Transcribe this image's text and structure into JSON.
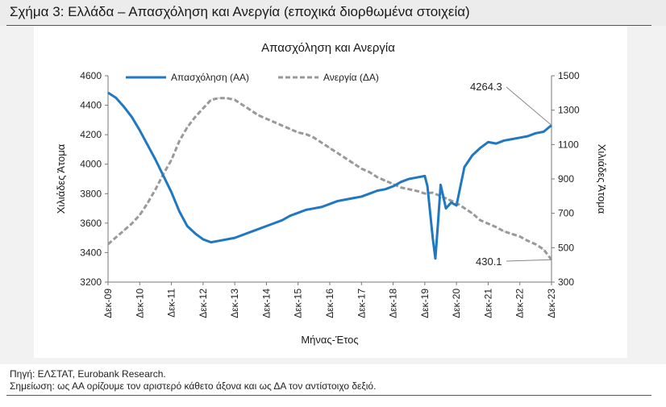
{
  "figure": {
    "title": "Σχήμα 3: Ελλάδα – Απασχόληση και Ανεργία (εποχικά διορθωμένα στοιχεία)",
    "source": "Πηγή: ΕΛΣΤΑΤ, Eurobank Research.",
    "note": "Σημείωση: ως ΑΑ ορίζουμε τον αριστερό κάθετο άξονα και ως ΔΑ τον αντίστοιχο δεξιό."
  },
  "chart_data": {
    "type": "line",
    "title": "Απασχόληση και Ανεργία",
    "xlabel": "Μήνας-Έτος",
    "ylabel_left": "Χιλιάδες Άτομα",
    "ylabel_right": "Χιλιάδες Άτομα",
    "ylim_left": [
      3200,
      4600
    ],
    "ylim_right": [
      300,
      1500
    ],
    "yticks_left": [
      "4600",
      "4400",
      "4200",
      "4000",
      "3800",
      "3600",
      "3400",
      "3200"
    ],
    "yticks_right": [
      "1500",
      "1300",
      "1100",
      "900",
      "700",
      "500",
      "300"
    ],
    "categories": [
      "Δεκ-09",
      "Δεκ-10",
      "Δεκ-11",
      "Δεκ-12",
      "Δεκ-13",
      "Δεκ-14",
      "Δεκ-15",
      "Δεκ-16",
      "Δεκ-17",
      "Δεκ-18",
      "Δεκ-19",
      "Δεκ-20",
      "Δεκ-21",
      "Δεκ-22",
      "Δεκ-23"
    ],
    "legend_position": "top",
    "grid": false,
    "colors": {
      "employment": "#1f78c1",
      "unemployment": "#999999",
      "annotation": "#888888"
    },
    "series": [
      {
        "name": "Απασχόληση (ΑΑ)",
        "axis": "left",
        "x": [
          "2009-12",
          "2010-03",
          "2010-06",
          "2010-09",
          "2010-12",
          "2011-03",
          "2011-06",
          "2011-09",
          "2011-12",
          "2012-03",
          "2012-06",
          "2012-09",
          "2012-12",
          "2013-03",
          "2013-06",
          "2013-09",
          "2013-12",
          "2014-03",
          "2014-06",
          "2014-09",
          "2014-12",
          "2015-03",
          "2015-06",
          "2015-09",
          "2015-12",
          "2016-03",
          "2016-06",
          "2016-09",
          "2016-12",
          "2017-03",
          "2017-06",
          "2017-09",
          "2017-12",
          "2018-03",
          "2018-06",
          "2018-09",
          "2018-12",
          "2019-03",
          "2019-06",
          "2019-09",
          "2019-12",
          "2020-01",
          "2020-03",
          "2020-04",
          "2020-05",
          "2020-06",
          "2020-08",
          "2020-10",
          "2020-12",
          "2021-03",
          "2021-06",
          "2021-09",
          "2021-12",
          "2022-03",
          "2022-06",
          "2022-09",
          "2022-12",
          "2023-03",
          "2023-06",
          "2023-09",
          "2023-12"
        ],
        "values": [
          4485,
          4450,
          4390,
          4320,
          4230,
          4130,
          4030,
          3920,
          3810,
          3680,
          3580,
          3530,
          3490,
          3470,
          3480,
          3490,
          3500,
          3520,
          3540,
          3560,
          3580,
          3600,
          3620,
          3650,
          3670,
          3690,
          3700,
          3710,
          3730,
          3750,
          3760,
          3770,
          3780,
          3800,
          3820,
          3830,
          3850,
          3880,
          3900,
          3910,
          3920,
          3850,
          3500,
          3360,
          3600,
          3860,
          3700,
          3740,
          3720,
          3980,
          4060,
          4110,
          4150,
          4140,
          4160,
          4170,
          4180,
          4190,
          4210,
          4220,
          4264.3
        ]
      },
      {
        "name": "Ανεργία (ΔΑ)",
        "axis": "right",
        "x": [
          "2009-12",
          "2010-03",
          "2010-06",
          "2010-09",
          "2010-12",
          "2011-03",
          "2011-06",
          "2011-09",
          "2011-12",
          "2012-03",
          "2012-06",
          "2012-09",
          "2012-12",
          "2013-03",
          "2013-06",
          "2013-09",
          "2013-12",
          "2014-03",
          "2014-06",
          "2014-09",
          "2014-12",
          "2015-03",
          "2015-06",
          "2015-09",
          "2015-12",
          "2016-03",
          "2016-06",
          "2016-09",
          "2016-12",
          "2017-03",
          "2017-06",
          "2017-09",
          "2017-12",
          "2018-03",
          "2018-06",
          "2018-09",
          "2018-12",
          "2019-03",
          "2019-06",
          "2019-09",
          "2019-12",
          "2020-03",
          "2020-06",
          "2020-09",
          "2020-12",
          "2021-03",
          "2021-06",
          "2021-09",
          "2021-12",
          "2022-03",
          "2022-06",
          "2022-09",
          "2022-12",
          "2023-03",
          "2023-06",
          "2023-09",
          "2023-12"
        ],
        "values": [
          520,
          560,
          600,
          640,
          690,
          760,
          840,
          930,
          1010,
          1120,
          1200,
          1260,
          1310,
          1360,
          1370,
          1370,
          1360,
          1330,
          1300,
          1270,
          1250,
          1230,
          1210,
          1190,
          1170,
          1160,
          1140,
          1110,
          1080,
          1050,
          1020,
          990,
          960,
          940,
          910,
          890,
          870,
          850,
          840,
          830,
          815,
          820,
          800,
          780,
          760,
          730,
          700,
          660,
          640,
          620,
          595,
          580,
          565,
          540,
          520,
          490,
          430.1
        ]
      }
    ],
    "annotations": [
      {
        "label": "4264.3",
        "series": "Απασχόληση (ΑΑ)",
        "x": "2023-12"
      },
      {
        "label": "430.1",
        "series": "Ανεργία (ΔΑ)",
        "x": "2023-12"
      }
    ]
  }
}
